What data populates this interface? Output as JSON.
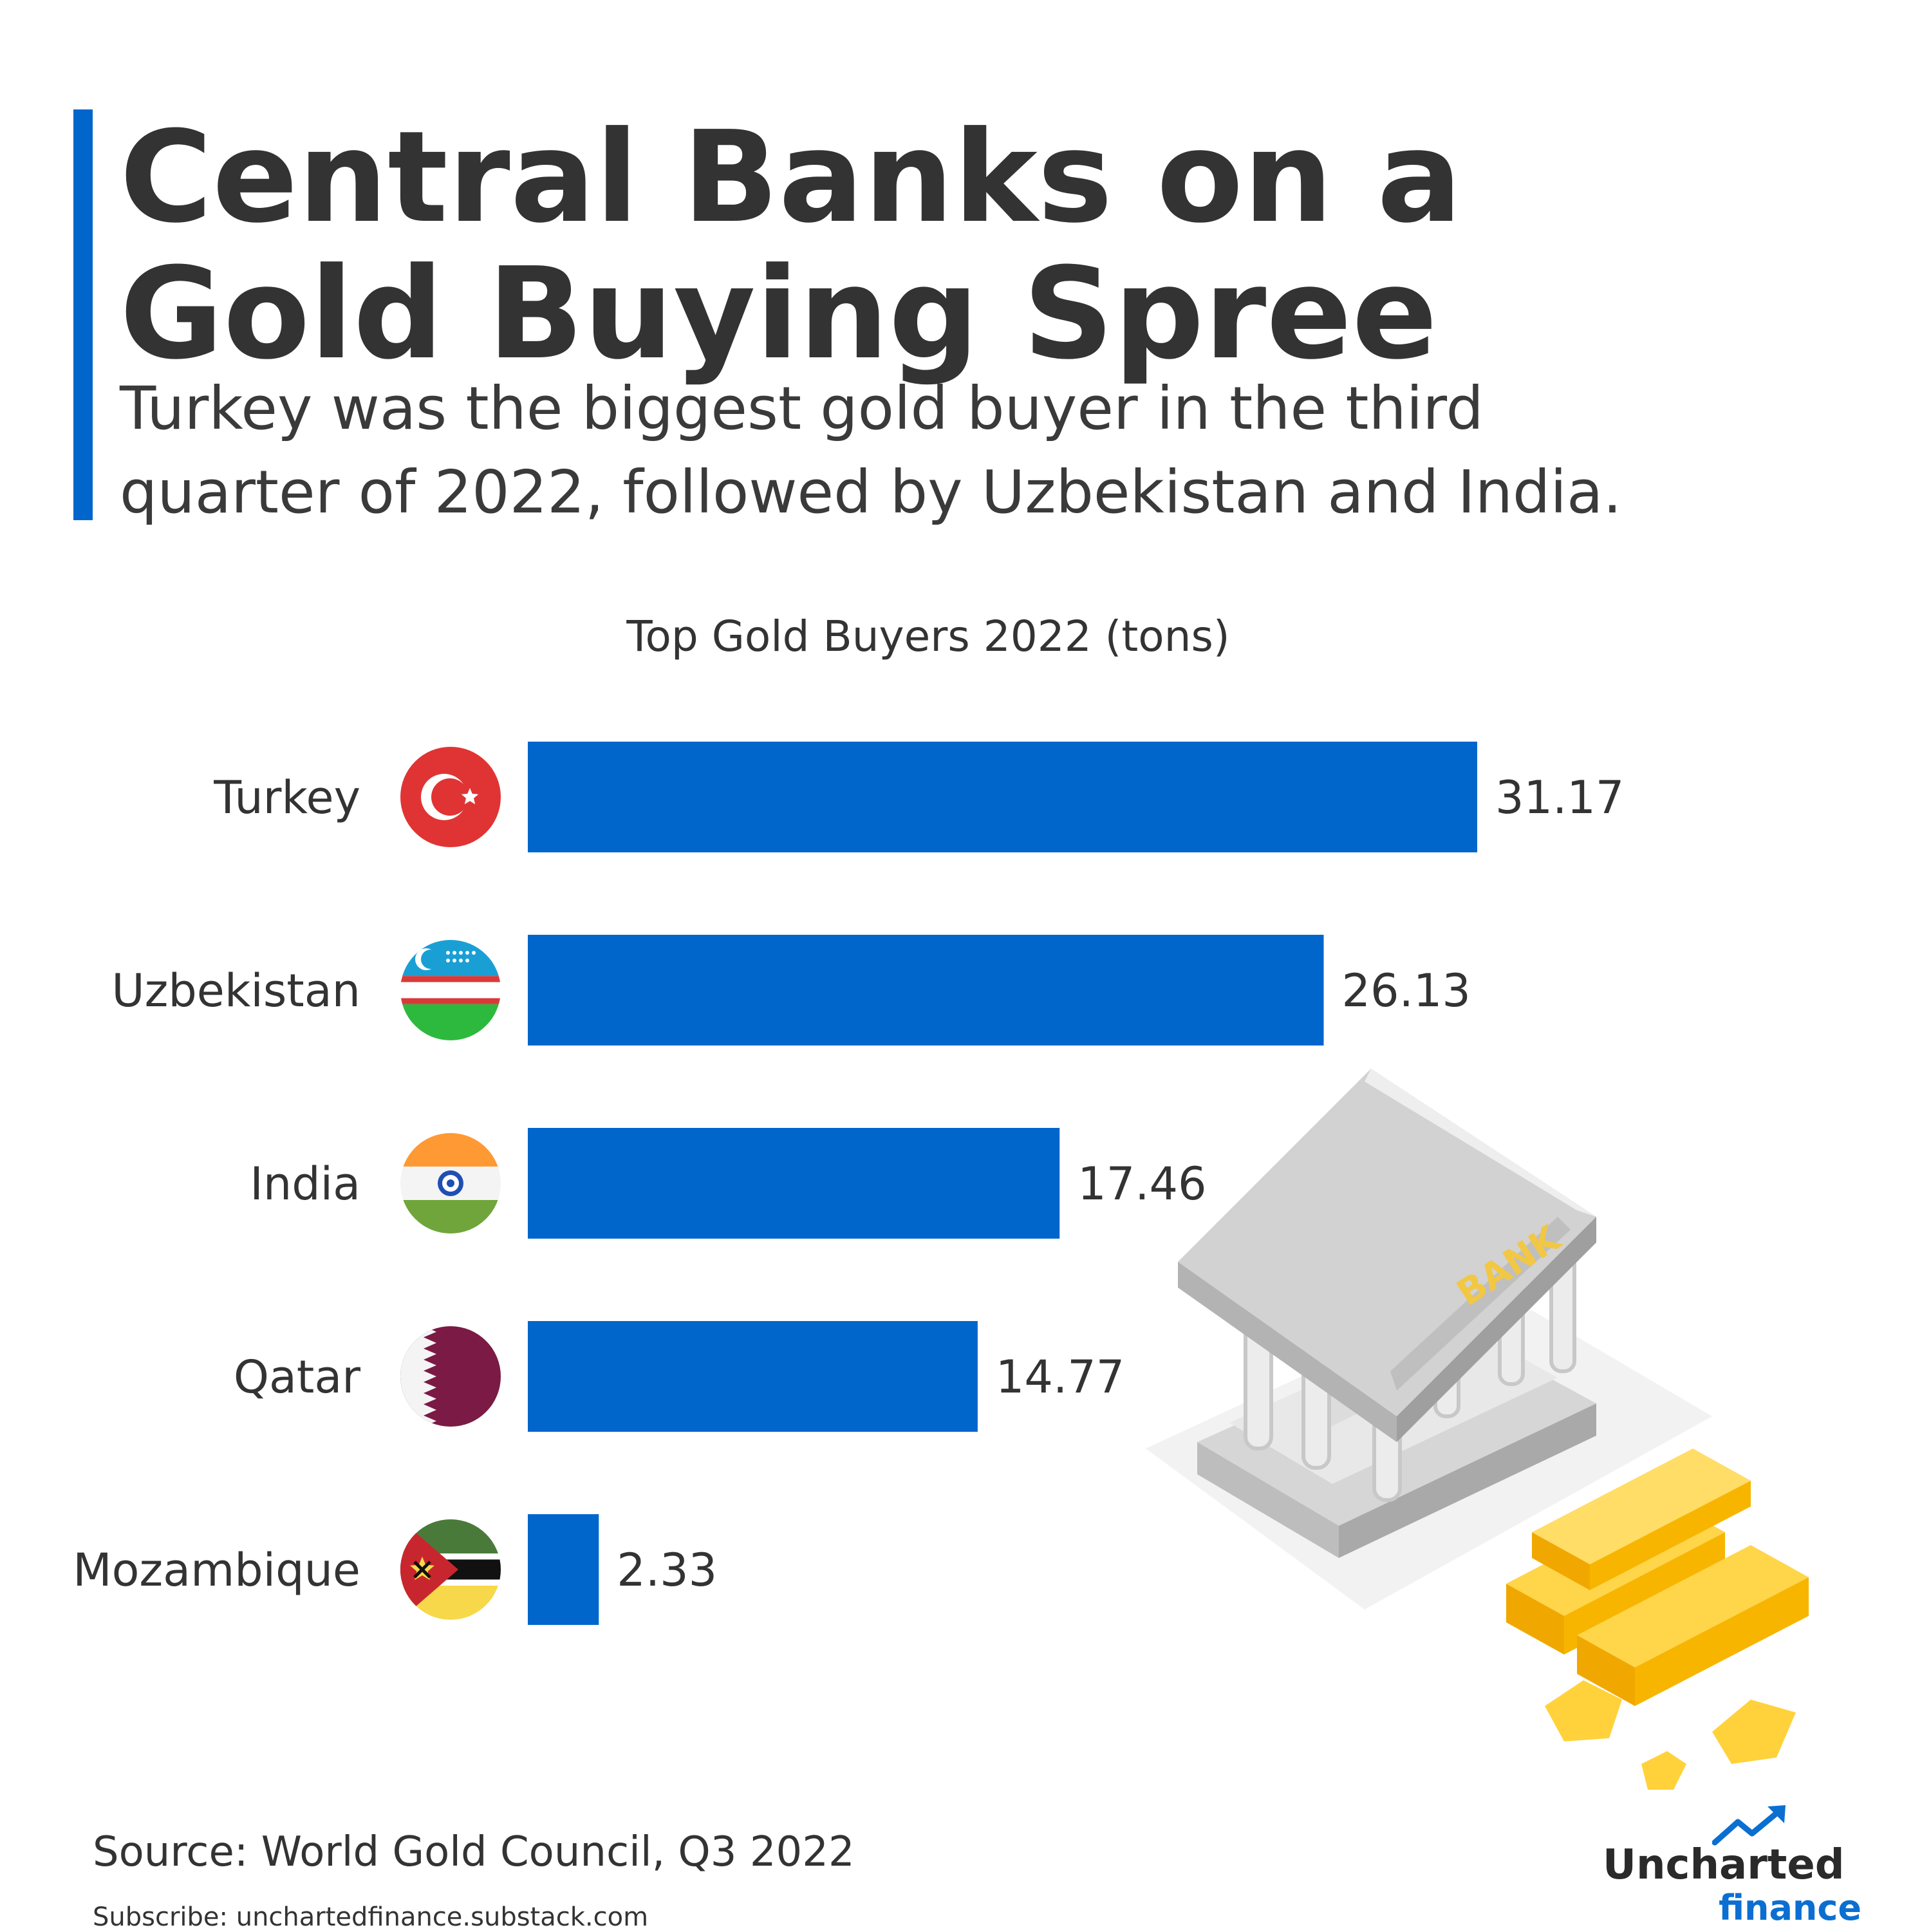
{
  "header": {
    "title_lines": [
      "Central Banks on a",
      "Gold Buying Spree"
    ],
    "subtitle_lines": [
      "Turkey was the biggest gold buyer in the third",
      "quarter of 2022, followed by Uzbekistan and India."
    ]
  },
  "colors": {
    "accent": "#0066cc",
    "bar": "#0066cc",
    "text": "#333333",
    "gold": "#f5b301"
  },
  "chart_data": {
    "type": "bar",
    "orientation": "horizontal",
    "title": "Top Gold Buyers 2022 (tons)",
    "categories": [
      "Turkey",
      "Uzbekistan",
      "India",
      "Qatar",
      "Mozambique"
    ],
    "values": [
      31.17,
      26.13,
      17.46,
      14.77,
      2.33
    ],
    "value_labels": [
      "31.17",
      "26.13",
      "17.46",
      "14.77",
      "2.33"
    ],
    "flags": [
      "turkey-flag-icon",
      "uzbekistan-flag-icon",
      "india-flag-icon",
      "qatar-flag-icon",
      "mozambique-flag-icon"
    ],
    "xlim": [
      0,
      31.17
    ],
    "grid": false,
    "legend": "none"
  },
  "illustration": {
    "bank_sign": "BANK",
    "icon": "bank-with-gold-bars-icon"
  },
  "footer": {
    "source": "Source: World Gold Council, Q3 2022",
    "subscribe": "Subscribe: unchartedfinance.substack.com"
  },
  "logo": {
    "line1": "Uncharted",
    "line2": "finance",
    "icon": "trend-up-arrow-icon"
  }
}
